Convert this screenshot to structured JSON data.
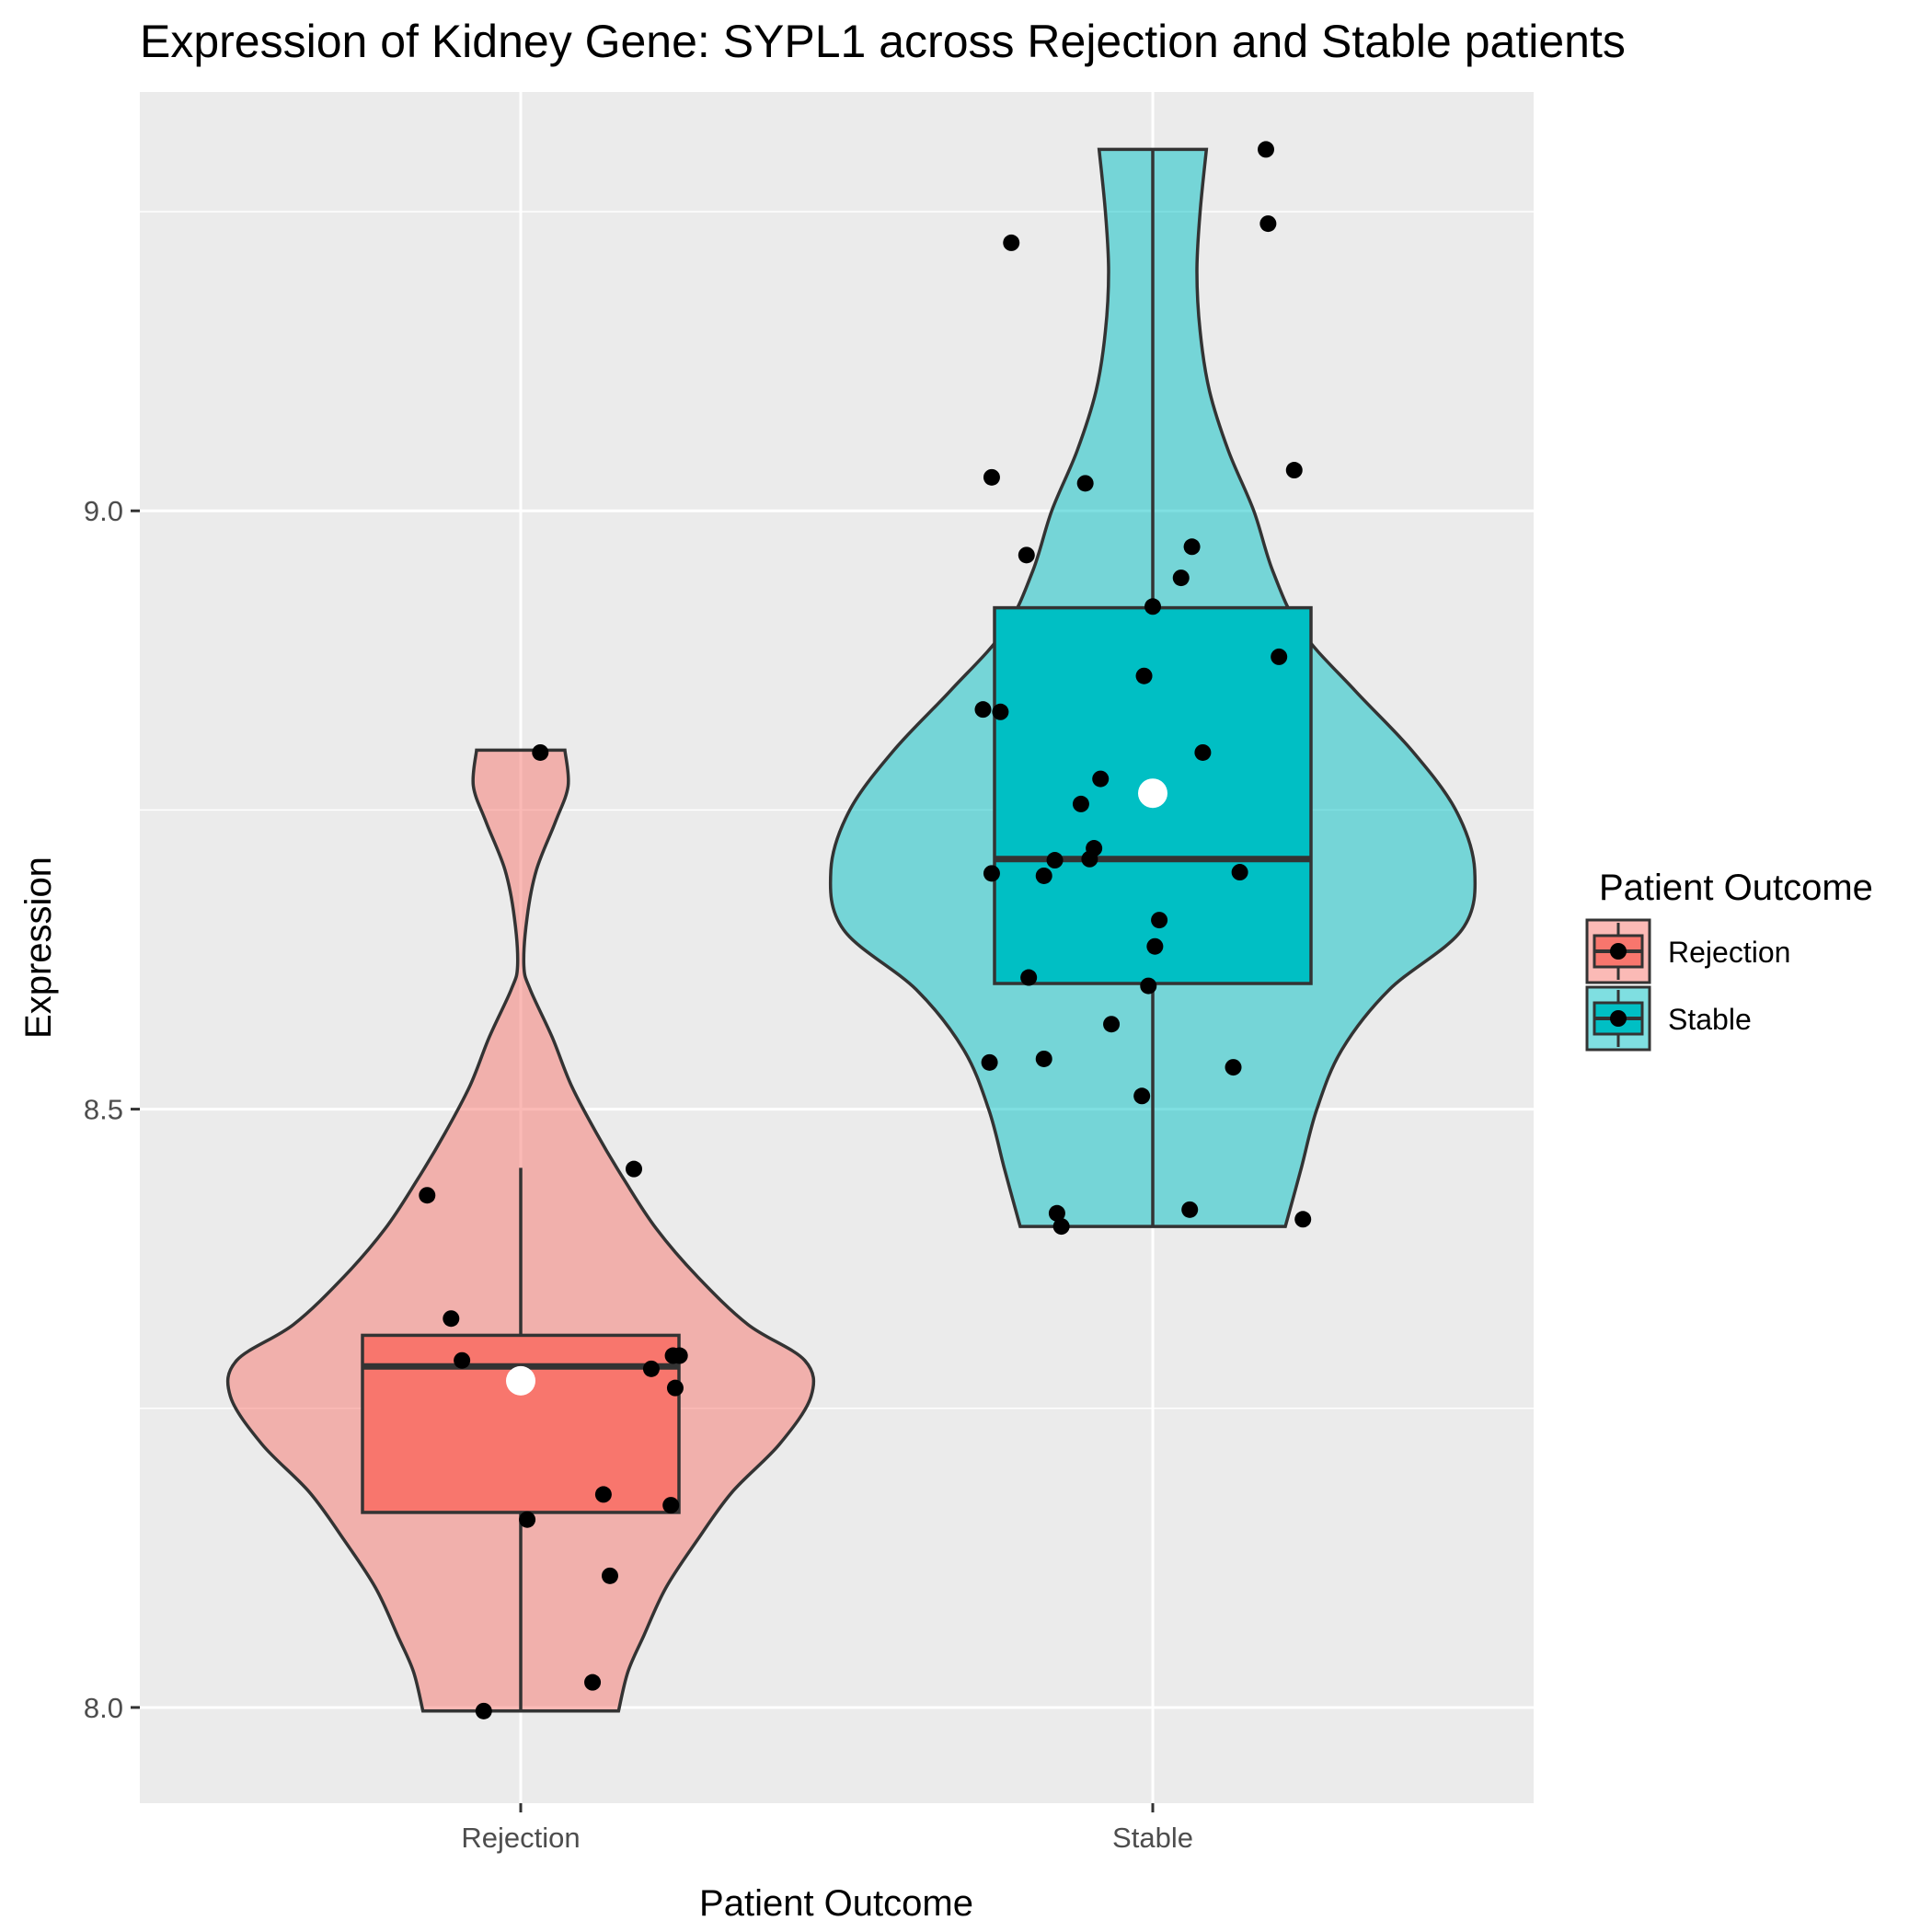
{
  "chart_data": {
    "type": "violin",
    "title": "Expression of Kidney Gene:  SYPL1  across Rejection and Stable patients",
    "xlabel": "Patient Outcome",
    "ylabel": "Expression",
    "categories": [
      "Rejection",
      "Stable"
    ],
    "ylim": [
      7.92,
      9.35
    ],
    "yticks": [
      8.0,
      8.5,
      9.0
    ],
    "ytick_labels": [
      "8.0",
      "8.5",
      "9.0"
    ],
    "grid": true,
    "colors": {
      "panel_bg": "#EBEBEB",
      "grid": "#FFFFFF",
      "Rejection": "#F8766D",
      "Stable": "#00BFC4",
      "outline": "#333333",
      "point": "#000000",
      "mean_point": "#FFFFFF"
    },
    "legend": {
      "title": "Patient Outcome",
      "position": "right",
      "entries": [
        "Rejection",
        "Stable"
      ]
    },
    "series": [
      {
        "name": "Rejection",
        "box": {
          "q1": 8.163,
          "median": 8.285,
          "q3": 8.311,
          "whisker_low": 7.997,
          "whisker_high": 8.451
        },
        "mean": 8.273,
        "violin": {
          "y": [
            7.997,
            8.03,
            8.06,
            8.1,
            8.14,
            8.18,
            8.22,
            8.26,
            8.29,
            8.32,
            8.36,
            8.4,
            8.44,
            8.48,
            8.52,
            8.56,
            8.6,
            8.62,
            8.66,
            8.7,
            8.74,
            8.77,
            8.8
          ],
          "width": [
            0.31,
            0.34,
            0.39,
            0.46,
            0.56,
            0.67,
            0.82,
            0.92,
            0.9,
            0.72,
            0.56,
            0.43,
            0.33,
            0.24,
            0.16,
            0.1,
            0.03,
            0.01,
            0.02,
            0.05,
            0.11,
            0.15,
            0.14
          ]
        },
        "points": [
          {
            "x": -0.43,
            "y": 8.428
          },
          {
            "x": 0.09,
            "y": 8.798
          },
          {
            "x": 0.52,
            "y": 8.45
          },
          {
            "x": -0.32,
            "y": 8.325
          },
          {
            "x": -0.27,
            "y": 8.29
          },
          {
            "x": 0.6,
            "y": 8.283
          },
          {
            "x": 0.7,
            "y": 8.294
          },
          {
            "x": 0.73,
            "y": 8.294
          },
          {
            "x": 0.71,
            "y": 8.267
          },
          {
            "x": 0.38,
            "y": 8.178
          },
          {
            "x": 0.69,
            "y": 8.169
          },
          {
            "x": 0.03,
            "y": 8.157
          },
          {
            "x": 0.41,
            "y": 8.11
          },
          {
            "x": 0.33,
            "y": 8.021
          },
          {
            "x": -0.17,
            "y": 7.997
          }
        ]
      },
      {
        "name": "Stable",
        "box": {
          "q1": 8.605,
          "median": 8.709,
          "q3": 8.919,
          "whisker_low": 8.402,
          "whisker_high": 9.302
        },
        "mean": 8.764,
        "violin": {
          "y": [
            8.402,
            8.45,
            8.5,
            8.55,
            8.6,
            8.65,
            8.7,
            8.75,
            8.8,
            8.85,
            8.9,
            8.95,
            9.0,
            9.05,
            9.1,
            9.15,
            9.2,
            9.25,
            9.302
          ],
          "width": [
            0.42,
            0.47,
            0.52,
            0.6,
            0.75,
            0.98,
            1.02,
            0.96,
            0.82,
            0.64,
            0.47,
            0.38,
            0.32,
            0.24,
            0.18,
            0.15,
            0.14,
            0.15,
            0.17
          ]
        },
        "points": [
          {
            "x": 0.52,
            "y": 9.302
          },
          {
            "x": 0.53,
            "y": 9.24
          },
          {
            "x": -0.65,
            "y": 9.224
          },
          {
            "x": 0.65,
            "y": 9.034
          },
          {
            "x": -0.74,
            "y": 9.028
          },
          {
            "x": -0.31,
            "y": 9.023
          },
          {
            "x": -0.58,
            "y": 8.963
          },
          {
            "x": 0.18,
            "y": 8.97
          },
          {
            "x": 0.13,
            "y": 8.944
          },
          {
            "x": 0.0,
            "y": 8.92
          },
          {
            "x": 0.58,
            "y": 8.878
          },
          {
            "x": -0.04,
            "y": 8.862
          },
          {
            "x": -0.78,
            "y": 8.834
          },
          {
            "x": -0.7,
            "y": 8.832
          },
          {
            "x": 0.23,
            "y": 8.798
          },
          {
            "x": -0.24,
            "y": 8.776
          },
          {
            "x": -0.33,
            "y": 8.755
          },
          {
            "x": -0.27,
            "y": 8.718
          },
          {
            "x": -0.45,
            "y": 8.708
          },
          {
            "x": -0.29,
            "y": 8.709
          },
          {
            "x": -0.74,
            "y": 8.697
          },
          {
            "x": -0.5,
            "y": 8.695
          },
          {
            "x": 0.4,
            "y": 8.698
          },
          {
            "x": 0.03,
            "y": 8.658
          },
          {
            "x": 0.01,
            "y": 8.636
          },
          {
            "x": -0.57,
            "y": 8.61
          },
          {
            "x": -0.02,
            "y": 8.603
          },
          {
            "x": -0.19,
            "y": 8.571
          },
          {
            "x": -0.5,
            "y": 8.542
          },
          {
            "x": -0.75,
            "y": 8.539
          },
          {
            "x": 0.37,
            "y": 8.535
          },
          {
            "x": -0.05,
            "y": 8.511
          },
          {
            "x": -0.44,
            "y": 8.413
          },
          {
            "x": -0.42,
            "y": 8.402
          },
          {
            "x": 0.17,
            "y": 8.416
          },
          {
            "x": 0.69,
            "y": 8.408
          }
        ]
      }
    ]
  }
}
